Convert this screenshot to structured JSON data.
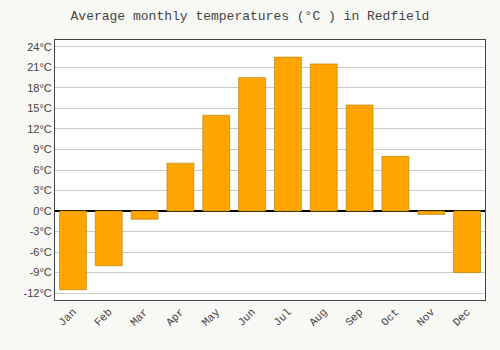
{
  "chart_data": {
    "type": "bar",
    "title": "Average monthly temperatures (°C ) in Redfield",
    "categories": [
      "Jan",
      "Feb",
      "Mar",
      "Apr",
      "May",
      "Jun",
      "Jul",
      "Aug",
      "Sep",
      "Oct",
      "Nov",
      "Dec"
    ],
    "values": [
      -11.5,
      -8.0,
      -1.2,
      7.0,
      14.0,
      19.5,
      22.5,
      21.5,
      15.5,
      8.0,
      -0.5,
      -9.0
    ],
    "color": "#FFA500",
    "ylim": [
      -13,
      25
    ],
    "yticks": [
      {
        "value": -12,
        "label": "-12°C"
      },
      {
        "value": -9,
        "label": "-9°C"
      },
      {
        "value": -6,
        "label": "-6°C"
      },
      {
        "value": -3,
        "label": "-3°C"
      },
      {
        "value": 0,
        "label": "0°C"
      },
      {
        "value": 3,
        "label": "3°C"
      },
      {
        "value": 6,
        "label": "6°C"
      },
      {
        "value": 9,
        "label": "9°C"
      },
      {
        "value": 12,
        "label": "12°C"
      },
      {
        "value": 15,
        "label": "15°C"
      },
      {
        "value": 18,
        "label": "18°C"
      },
      {
        "value": 21,
        "label": "21°C"
      },
      {
        "value": 24,
        "label": "24°C"
      }
    ],
    "grid": true
  }
}
